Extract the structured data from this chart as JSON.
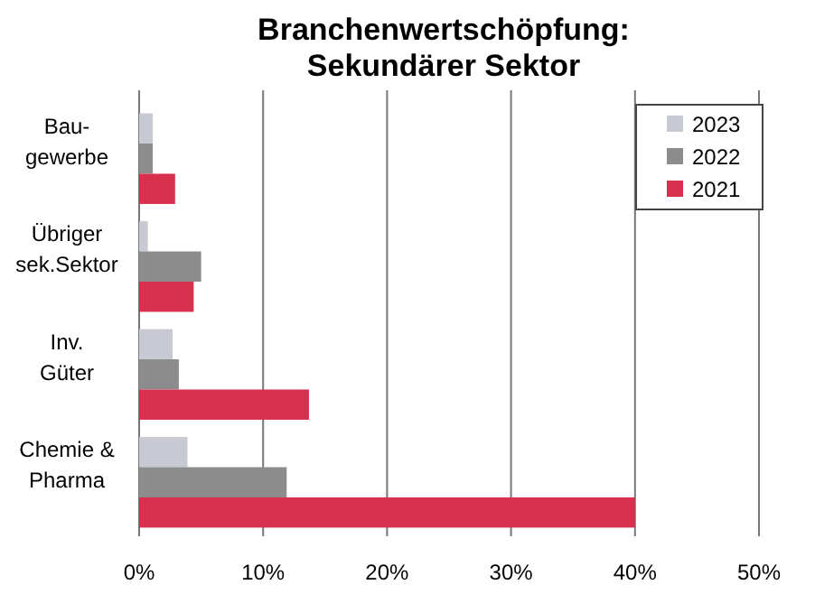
{
  "chart_data": {
    "type": "bar",
    "orientation": "horizontal",
    "title": "Branchenwertschöpfung:\nSekundärer Sektor",
    "categories": [
      "Bau-\ngewerbe",
      "Übriger\nsek.Sektor",
      "Inv.\nGüter",
      "Chemie &\nPharma"
    ],
    "series": [
      {
        "name": "2023",
        "color": "#c8cad3",
        "values": [
          1.1,
          0.7,
          2.7,
          3.9
        ]
      },
      {
        "name": "2022",
        "color": "#8c8c8c",
        "values": [
          1.1,
          5.0,
          3.2,
          11.9
        ]
      },
      {
        "name": "2021",
        "color": "#d8304f",
        "values": [
          2.9,
          4.4,
          13.7,
          40
        ]
      }
    ],
    "xlim": [
      0,
      50
    ],
    "xticks": [
      {
        "value": 0,
        "label": "0%"
      },
      {
        "value": 10,
        "label": "10%"
      },
      {
        "value": 20,
        "label": "20%"
      },
      {
        "value": 30,
        "label": "30%"
      },
      {
        "value": 40,
        "label": "40%"
      },
      {
        "value": 50,
        "label": "50%"
      }
    ],
    "grid": "x",
    "legend": "top right"
  }
}
